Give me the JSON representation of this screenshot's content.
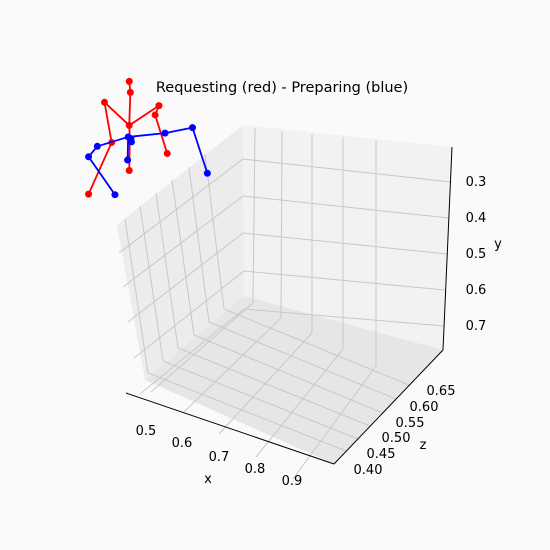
{
  "chart_data": {
    "type": "scatter3d",
    "title": "Requesting (red) - Preparing (blue)",
    "xlabel": "x",
    "ylabel": "y",
    "zlabel": "z",
    "x_ticks": [
      "0.5",
      "0.6",
      "0.7",
      "0.8",
      "0.9"
    ],
    "y_ticks": [
      "0.3",
      "0.4",
      "0.5",
      "0.6",
      "0.7"
    ],
    "z_ticks": [
      "0.40",
      "0.45",
      "0.50",
      "0.55",
      "0.60",
      "0.65"
    ],
    "colors": {
      "red": "#ff0000",
      "blue": "#0000ff",
      "pane": "#f2f2f2",
      "grid": "#c8c8c8"
    },
    "series": [
      {
        "color": "red",
        "marker": "o",
        "points": [
          [
            0.235,
            0.148
          ],
          [
            0.237,
            0.168
          ],
          [
            0.235,
            0.228
          ],
          [
            0.19,
            0.186
          ],
          [
            0.203,
            0.259
          ],
          [
            0.161,
            0.353
          ],
          [
            0.289,
            0.192
          ],
          [
            0.282,
            0.209
          ],
          [
            0.304,
            0.279
          ],
          [
            0.236,
            0.252
          ],
          [
            0.235,
            0.31
          ]
        ],
        "segments": [
          [
            0,
            1
          ],
          [
            1,
            2
          ],
          [
            2,
            3
          ],
          [
            3,
            4
          ],
          [
            4,
            5
          ],
          [
            2,
            6
          ],
          [
            6,
            7
          ],
          [
            7,
            8
          ],
          [
            2,
            9
          ],
          [
            9,
            10
          ]
        ]
      },
      {
        "color": "blue",
        "marker": "o",
        "points": [
          [
            0.233,
            0.249
          ],
          [
            0.238,
            0.252
          ],
          [
            0.239,
            0.258
          ],
          [
            0.232,
            0.291
          ],
          [
            0.3,
            0.242
          ],
          [
            0.35,
            0.232
          ],
          [
            0.377,
            0.315
          ],
          [
            0.177,
            0.266
          ],
          [
            0.161,
            0.285
          ],
          [
            0.209,
            0.354
          ]
        ],
        "segments": [
          [
            0,
            1
          ],
          [
            1,
            2
          ],
          [
            0,
            3
          ],
          [
            0,
            4
          ],
          [
            4,
            5
          ],
          [
            5,
            6
          ],
          [
            0,
            7
          ],
          [
            7,
            8
          ],
          [
            8,
            9
          ]
        ]
      }
    ]
  }
}
